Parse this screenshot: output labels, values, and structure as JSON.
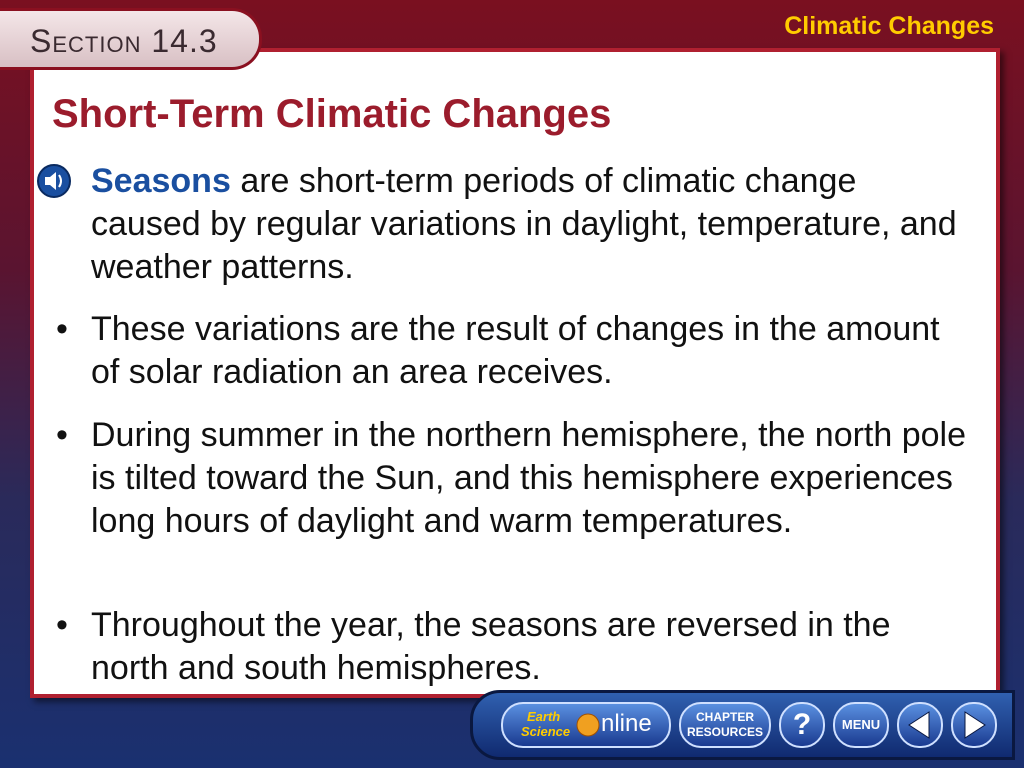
{
  "header": {
    "section": "Section 14.3",
    "topic": "Climatic Changes"
  },
  "title": "Short-Term Climatic Changes",
  "paragraphs": [
    {
      "keyword": "Seasons",
      "text": "are short-term periods of climatic change caused by regular variations in daylight, temperature, and weather patterns."
    },
    {
      "text": "These variations are the result of changes in the amount of solar radiation an area receives."
    },
    {
      "text": "During summer in the northern hemisphere, the north pole is tilted toward the Sun, and this hemisphere experiences long hours of daylight and warm temperatures."
    },
    {
      "text": "Throughout the year, the seasons are reversed in the north and south hemispheres."
    }
  ],
  "nav": {
    "logo_earth": "Earth",
    "logo_science": "Science",
    "logo_online": "nline",
    "chapter": "CHAPTER",
    "resources": "RESOURCES",
    "help": "?",
    "menu": "MENU"
  }
}
